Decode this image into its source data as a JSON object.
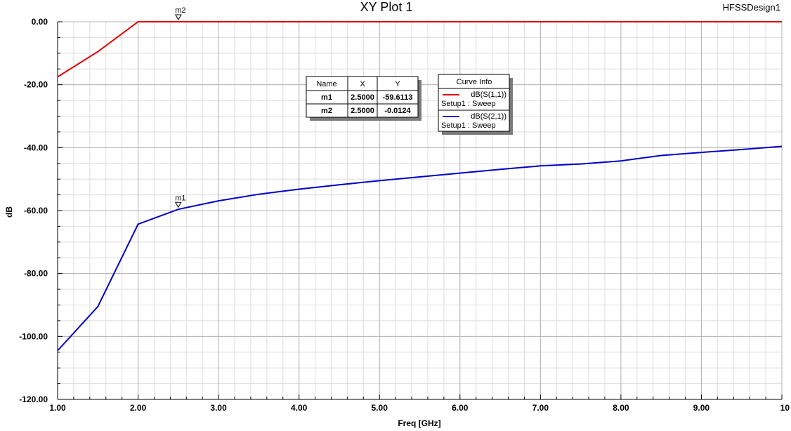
{
  "design_name": "HFSSDesign1",
  "chart_data": {
    "type": "line",
    "title": "XY Plot 1",
    "xlabel": "Freq [GHz]",
    "ylabel": "dB",
    "xlim": [
      1,
      10
    ],
    "ylim": [
      -120,
      0
    ],
    "x_ticks": [
      "1.00",
      "2.00",
      "3.00",
      "4.00",
      "5.00",
      "6.00",
      "7.00",
      "8.00",
      "9.00",
      "10"
    ],
    "y_ticks": [
      "0.00",
      "-20.00",
      "-40.00",
      "-60.00",
      "-80.00",
      "-100.00",
      "-120.00"
    ],
    "grid": true,
    "series": [
      {
        "name": "dB(S(1,1))",
        "setup": "Setup1 : Sweep",
        "color": "#e00000",
        "x": [
          1.0,
          1.5,
          2.0,
          2.5,
          3.0,
          4.0,
          5.0,
          6.0,
          7.0,
          8.0,
          9.0,
          10.0
        ],
        "y": [
          -17.5,
          -9.5,
          0,
          0,
          0,
          0,
          0,
          0,
          0,
          0,
          0,
          0
        ]
      },
      {
        "name": "dB(S(2,1))",
        "setup": "Setup1 : Sweep",
        "color": "#0000c8",
        "x": [
          1.0,
          1.5,
          2.0,
          2.5,
          3.0,
          3.5,
          4.0,
          4.5,
          5.0,
          5.5,
          6.0,
          6.5,
          7.0,
          7.5,
          8.0,
          8.5,
          9.0,
          9.5,
          10.0
        ],
        "y": [
          -104.5,
          -90.5,
          -64.3,
          -59.6,
          -56.9,
          -54.8,
          -53.2,
          -51.8,
          -50.5,
          -49.3,
          -48.1,
          -46.9,
          -45.8,
          -45.2,
          -44.2,
          -42.5,
          -41.5,
          -40.6,
          -39.6
        ]
      }
    ],
    "markers": [
      {
        "name": "m1",
        "x": 2.5,
        "y": -59.6113
      },
      {
        "name": "m2",
        "x": 2.5,
        "y": -0.0124
      }
    ]
  },
  "marker_table": {
    "headers": [
      "Name",
      "X",
      "Y"
    ],
    "rows": [
      [
        "m1",
        "2.5000",
        "-59.6113"
      ],
      [
        "m2",
        "2.5000",
        "-0.0124"
      ]
    ]
  },
  "curve_info": {
    "title": "Curve Info"
  }
}
